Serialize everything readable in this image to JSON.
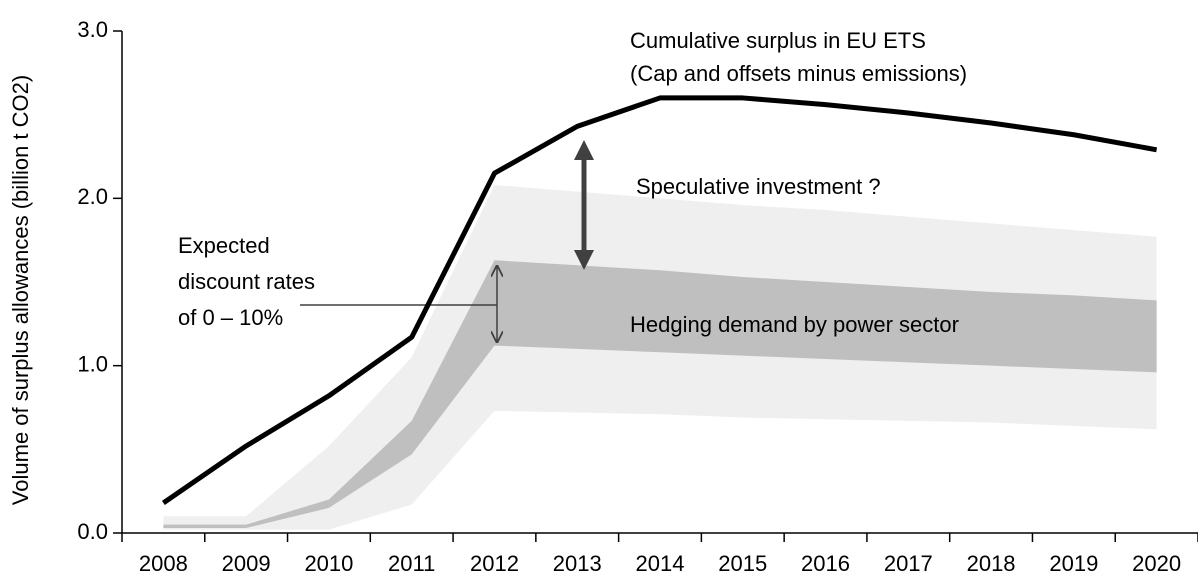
{
  "chart_data": {
    "type": "line",
    "ylabel": "Volume of surplus allowances (billion t CO2)",
    "categories": [
      "2008",
      "2009",
      "2010",
      "2011",
      "2012",
      "2013",
      "2014",
      "2015",
      "2016",
      "2017",
      "2018",
      "2019",
      "2020"
    ],
    "series": [
      {
        "color": "#000000",
        "values": [
          0.18,
          0.52,
          0.82,
          1.17,
          2.15,
          2.43,
          2.6,
          2.6,
          2.56,
          2.51,
          2.45,
          2.38,
          2.29
        ]
      }
    ],
    "bands": [
      {
        "color": "#efefef",
        "lower": [
          0.02,
          0.02,
          0.02,
          0.17,
          0.73,
          0.72,
          0.71,
          0.69,
          0.68,
          0.67,
          0.66,
          0.64,
          0.62
        ],
        "upper": [
          0.1,
          0.1,
          0.52,
          1.05,
          2.08,
          2.04,
          2.0,
          1.96,
          1.93,
          1.89,
          1.85,
          1.81,
          1.77
        ]
      },
      {
        "color": "#bfbfbf",
        "lower": [
          0.03,
          0.03,
          0.15,
          0.47,
          1.12,
          1.1,
          1.08,
          1.06,
          1.04,
          1.02,
          1.0,
          0.98,
          0.96
        ],
        "upper": [
          0.05,
          0.05,
          0.2,
          0.67,
          1.63,
          1.6,
          1.57,
          1.53,
          1.5,
          1.47,
          1.44,
          1.42,
          1.39
        ]
      }
    ],
    "ylim": [
      0,
      3
    ],
    "yticks": [
      {
        "value": 0,
        "label": "0.0"
      },
      {
        "value": 1,
        "label": "1.0"
      },
      {
        "value": 2,
        "label": "2.0"
      },
      {
        "value": 3,
        "label": "3.0"
      }
    ],
    "annotations": [
      "Cumulative surplus in EU ETS",
      "(Cap and offsets minus emissions)",
      "Speculative investment ?",
      "Hedging demand by power sector",
      "Expected",
      "discount rates",
      "of 0 – 10%"
    ]
  }
}
